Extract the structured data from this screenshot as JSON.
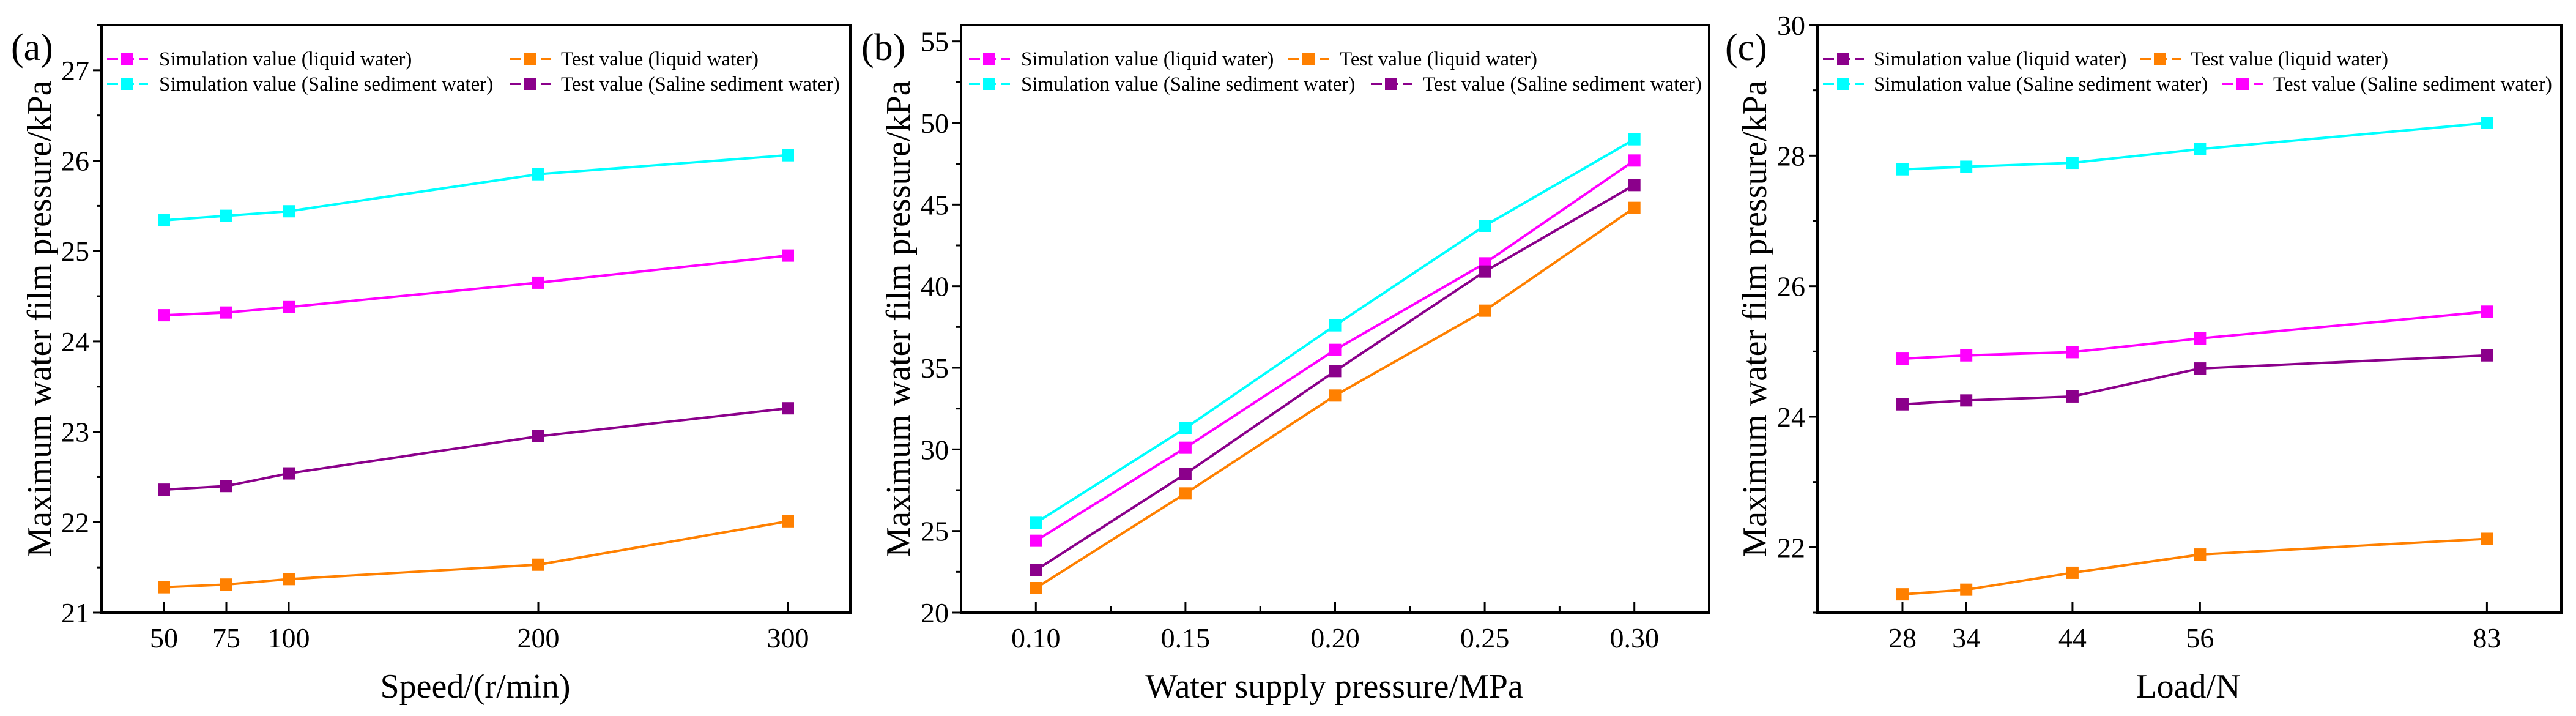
{
  "chart_data": [
    {
      "type": "line",
      "panel_label": "(a)",
      "xlabel": "Speed/(r/min)",
      "ylabel": "Maximum water film pressure/kPa",
      "x": [
        50,
        75,
        100,
        200,
        300
      ],
      "x_ticks": [
        "50",
        "75",
        "100",
        "200",
        "300"
      ],
      "xlim": [
        25,
        325
      ],
      "ylim": [
        21,
        27.5
      ],
      "y_ticks": [
        "21",
        "22",
        "23",
        "24",
        "25",
        "26",
        "27"
      ],
      "y_tick_values": [
        21,
        22,
        23,
        24,
        25,
        26,
        27
      ],
      "y_minor_step": 0.5,
      "x_minor": [],
      "legend_placement": "top",
      "series": [
        {
          "name": "Simulation value (liquid water)",
          "color": "#FF00FF",
          "values": [
            24.29,
            24.32,
            24.38,
            24.65,
            24.95
          ]
        },
        {
          "name": "Test value (liquid water)",
          "color": "#FF8000",
          "values": [
            21.28,
            21.31,
            21.37,
            21.53,
            22.01
          ]
        },
        {
          "name": "Simulation value (Saline sediment water)",
          "color": "#00FFFF",
          "values": [
            25.34,
            25.39,
            25.44,
            25.85,
            26.06
          ]
        },
        {
          "name": "Test value (Saline sediment water)",
          "color": "#8B008B",
          "values": [
            22.36,
            22.4,
            22.54,
            22.95,
            23.26
          ]
        }
      ]
    },
    {
      "type": "line",
      "panel_label": "(b)",
      "xlabel": "Water supply pressure/MPa",
      "ylabel": "Maximum water film pressure/kPa",
      "x": [
        0.1,
        0.15,
        0.2,
        0.25,
        0.3
      ],
      "x_ticks": [
        "0.10",
        "0.15",
        "0.20",
        "0.25",
        "0.30"
      ],
      "xlim": [
        0.075,
        0.325
      ],
      "ylim": [
        20,
        56
      ],
      "y_ticks": [
        "20",
        "25",
        "30",
        "35",
        "40",
        "45",
        "50",
        "55"
      ],
      "y_tick_values": [
        20,
        25,
        30,
        35,
        40,
        45,
        50,
        55
      ],
      "y_minor_step": 2.5,
      "x_minor": [
        0.125,
        0.175,
        0.225,
        0.275
      ],
      "legend_placement": "top",
      "series": [
        {
          "name": "Simulation value (liquid water)",
          "color": "#FF00FF",
          "values": [
            24.4,
            30.1,
            36.1,
            41.4,
            47.7
          ]
        },
        {
          "name": "Test value (liquid water)",
          "color": "#FF8000",
          "values": [
            21.5,
            27.3,
            33.3,
            38.5,
            44.8
          ]
        },
        {
          "name": "Simulation value (Saline sediment water)",
          "color": "#00FFFF",
          "values": [
            25.5,
            31.3,
            37.6,
            43.7,
            49.0
          ]
        },
        {
          "name": "Test value (Saline sediment water)",
          "color": "#8B008B",
          "values": [
            22.6,
            28.5,
            34.8,
            40.9,
            46.2
          ]
        }
      ]
    },
    {
      "type": "line",
      "panel_label": "(c)",
      "xlabel": "Load/N",
      "ylabel": "Maximum water film pressure/kPa",
      "x": [
        28,
        34,
        44,
        56,
        83
      ],
      "x_ticks": [
        "28",
        "34",
        "44",
        "56",
        "83"
      ],
      "xlim": [
        20,
        90
      ],
      "ylim": [
        21,
        30
      ],
      "y_ticks": [
        "22",
        "24",
        "26",
        "28",
        "30"
      ],
      "y_tick_values": [
        22,
        24,
        26,
        28,
        30
      ],
      "y_minor_step": 1,
      "x_minor": [],
      "legend_placement": "top",
      "series": [
        {
          "name": "Simulation value (liquid water)",
          "color": "#8B008B",
          "values": [
            24.19,
            24.25,
            24.31,
            24.74,
            24.94
          ]
        },
        {
          "name": "Test value (liquid water)",
          "color": "#FF8000",
          "values": [
            21.28,
            21.35,
            21.61,
            21.89,
            22.13
          ]
        },
        {
          "name": "Simulation value (Saline sediment water)",
          "color": "#00FFFF",
          "values": [
            27.79,
            27.83,
            27.89,
            28.1,
            28.5
          ]
        },
        {
          "name": "Test value (Saline sediment water)",
          "color": "#FF00FF",
          "values": [
            24.89,
            24.94,
            24.99,
            25.2,
            25.61
          ]
        }
      ]
    }
  ]
}
